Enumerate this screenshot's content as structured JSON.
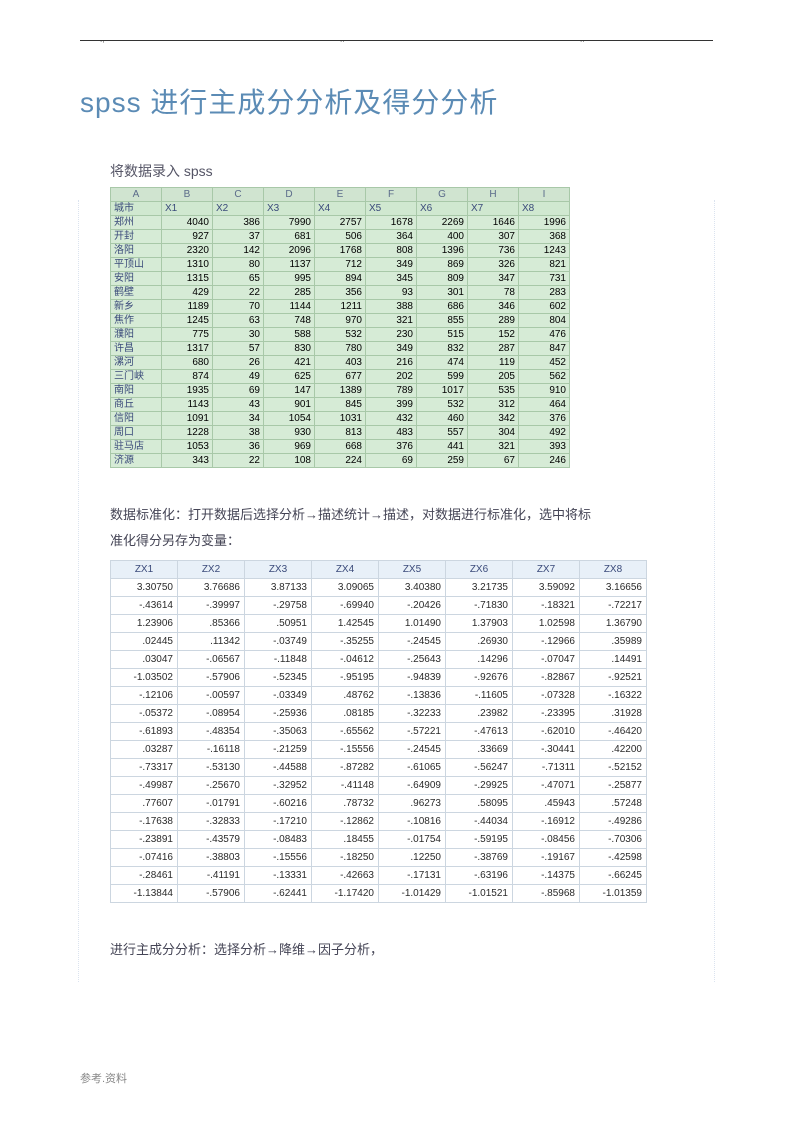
{
  "page_title": "spss 进行主成分分析及得分分析",
  "section1_label": "将数据录入 spss",
  "columns_letters": [
    "A",
    "B",
    "C",
    "D",
    "E",
    "F",
    "G",
    "H",
    "I"
  ],
  "var_row": [
    "城市",
    "X1",
    "X2",
    "X3",
    "X4",
    "X5",
    "X6",
    "X7",
    "X8"
  ],
  "raw_rows": [
    [
      "郑州",
      "4040",
      "386",
      "7990",
      "2757",
      "1678",
      "2269",
      "1646",
      "1996"
    ],
    [
      "开封",
      "927",
      "37",
      "681",
      "506",
      "364",
      "400",
      "307",
      "368"
    ],
    [
      "洛阳",
      "2320",
      "142",
      "2096",
      "1768",
      "808",
      "1396",
      "736",
      "1243"
    ],
    [
      "平顶山",
      "1310",
      "80",
      "1137",
      "712",
      "349",
      "869",
      "326",
      "821"
    ],
    [
      "安阳",
      "1315",
      "65",
      "995",
      "894",
      "345",
      "809",
      "347",
      "731"
    ],
    [
      "鹤壁",
      "429",
      "22",
      "285",
      "356",
      "93",
      "301",
      "78",
      "283"
    ],
    [
      "新乡",
      "1189",
      "70",
      "1144",
      "1211",
      "388",
      "686",
      "346",
      "602"
    ],
    [
      "焦作",
      "1245",
      "63",
      "748",
      "970",
      "321",
      "855",
      "289",
      "804"
    ],
    [
      "濮阳",
      "775",
      "30",
      "588",
      "532",
      "230",
      "515",
      "152",
      "476"
    ],
    [
      "许昌",
      "1317",
      "57",
      "830",
      "780",
      "349",
      "832",
      "287",
      "847"
    ],
    [
      "漯河",
      "680",
      "26",
      "421",
      "403",
      "216",
      "474",
      "119",
      "452"
    ],
    [
      "三门峡",
      "874",
      "49",
      "625",
      "677",
      "202",
      "599",
      "205",
      "562"
    ],
    [
      "南阳",
      "1935",
      "69",
      "147",
      "1389",
      "789",
      "1017",
      "535",
      "910"
    ],
    [
      "商丘",
      "1143",
      "43",
      "901",
      "845",
      "399",
      "532",
      "312",
      "464"
    ],
    [
      "信阳",
      "1091",
      "34",
      "1054",
      "1031",
      "432",
      "460",
      "342",
      "376"
    ],
    [
      "周口",
      "1228",
      "38",
      "930",
      "813",
      "483",
      "557",
      "304",
      "492"
    ],
    [
      "驻马店",
      "1053",
      "36",
      "969",
      "668",
      "376",
      "441",
      "321",
      "393"
    ],
    [
      "济源",
      "343",
      "22",
      "108",
      "224",
      "69",
      "259",
      "67",
      "246"
    ]
  ],
  "section2_text_a": "数据标准化：打开数据后选择分析→描述统计→描述，对数据进行标准化，选中将标",
  "section2_text_b": "准化得分另存为变量：",
  "z_headers": [
    "ZX1",
    "ZX2",
    "ZX3",
    "ZX4",
    "ZX5",
    "ZX6",
    "ZX7",
    "ZX8"
  ],
  "z_rows": [
    [
      "3.30750",
      "3.76686",
      "3.87133",
      "3.09065",
      "3.40380",
      "3.21735",
      "3.59092",
      "3.16656"
    ],
    [
      "-.43614",
      "-.39997",
      "-.29758",
      "-.69940",
      "-.20426",
      "-.71830",
      "-.18321",
      "-.72217"
    ],
    [
      "1.23906",
      ".85366",
      ".50951",
      "1.42545",
      "1.01490",
      "1.37903",
      "1.02598",
      "1.36790"
    ],
    [
      ".02445",
      ".11342",
      "-.03749",
      "-.35255",
      "-.24545",
      ".26930",
      "-.12966",
      ".35989"
    ],
    [
      ".03047",
      "-.06567",
      "-.11848",
      "-.04612",
      "-.25643",
      ".14296",
      "-.07047",
      ".14491"
    ],
    [
      "-1.03502",
      "-.57906",
      "-.52345",
      "-.95195",
      "-.94839",
      "-.92676",
      "-.82867",
      "-.92521"
    ],
    [
      "-.12106",
      "-.00597",
      "-.03349",
      ".48762",
      "-.13836",
      "-.11605",
      "-.07328",
      "-.16322"
    ],
    [
      "-.05372",
      "-.08954",
      "-.25936",
      ".08185",
      "-.32233",
      ".23982",
      "-.23395",
      ".31928"
    ],
    [
      "-.61893",
      "-.48354",
      "-.35063",
      "-.65562",
      "-.57221",
      "-.47613",
      "-.62010",
      "-.46420"
    ],
    [
      ".03287",
      "-.16118",
      "-.21259",
      "-.15556",
      "-.24545",
      ".33669",
      "-.30441",
      ".42200"
    ],
    [
      "-.73317",
      "-.53130",
      "-.44588",
      "-.87282",
      "-.61065",
      "-.56247",
      "-.71311",
      "-.52152"
    ],
    [
      "-.49987",
      "-.25670",
      "-.32952",
      "-.41148",
      "-.64909",
      "-.29925",
      "-.47071",
      "-.25877"
    ],
    [
      ".77607",
      "-.01791",
      "-.60216",
      ".78732",
      ".96273",
      ".58095",
      ".45943",
      ".57248"
    ],
    [
      "-.17638",
      "-.32833",
      "-.17210",
      "-.12862",
      "-.10816",
      "-.44034",
      "-.16912",
      "-.49286"
    ],
    [
      "-.23891",
      "-.43579",
      "-.08483",
      ".18455",
      "-.01754",
      "-.59195",
      "-.08456",
      "-.70306"
    ],
    [
      "-.07416",
      "-.38803",
      "-.15556",
      "-.18250",
      ".12250",
      "-.38769",
      "-.19167",
      "-.42598"
    ],
    [
      "-.28461",
      "-.41191",
      "-.13331",
      "-.42663",
      "-.17131",
      "-.63196",
      "-.14375",
      "-.66245"
    ],
    [
      "-1.13844",
      "-.57906",
      "-.62441",
      "-1.17420",
      "-1.01429",
      "-1.01521",
      "-.85968",
      "-1.01359"
    ]
  ],
  "section3_text": "进行主成分分析：选择分析→降维→因子分析，",
  "footer_text": "参考.资料",
  "colors": {
    "title": "#5b8bb5",
    "spss_bg": "#d6ebd6",
    "spss_border": "#a8c8a8",
    "z_header_bg": "#e8f0f8",
    "z_border": "#ccd6e0"
  }
}
